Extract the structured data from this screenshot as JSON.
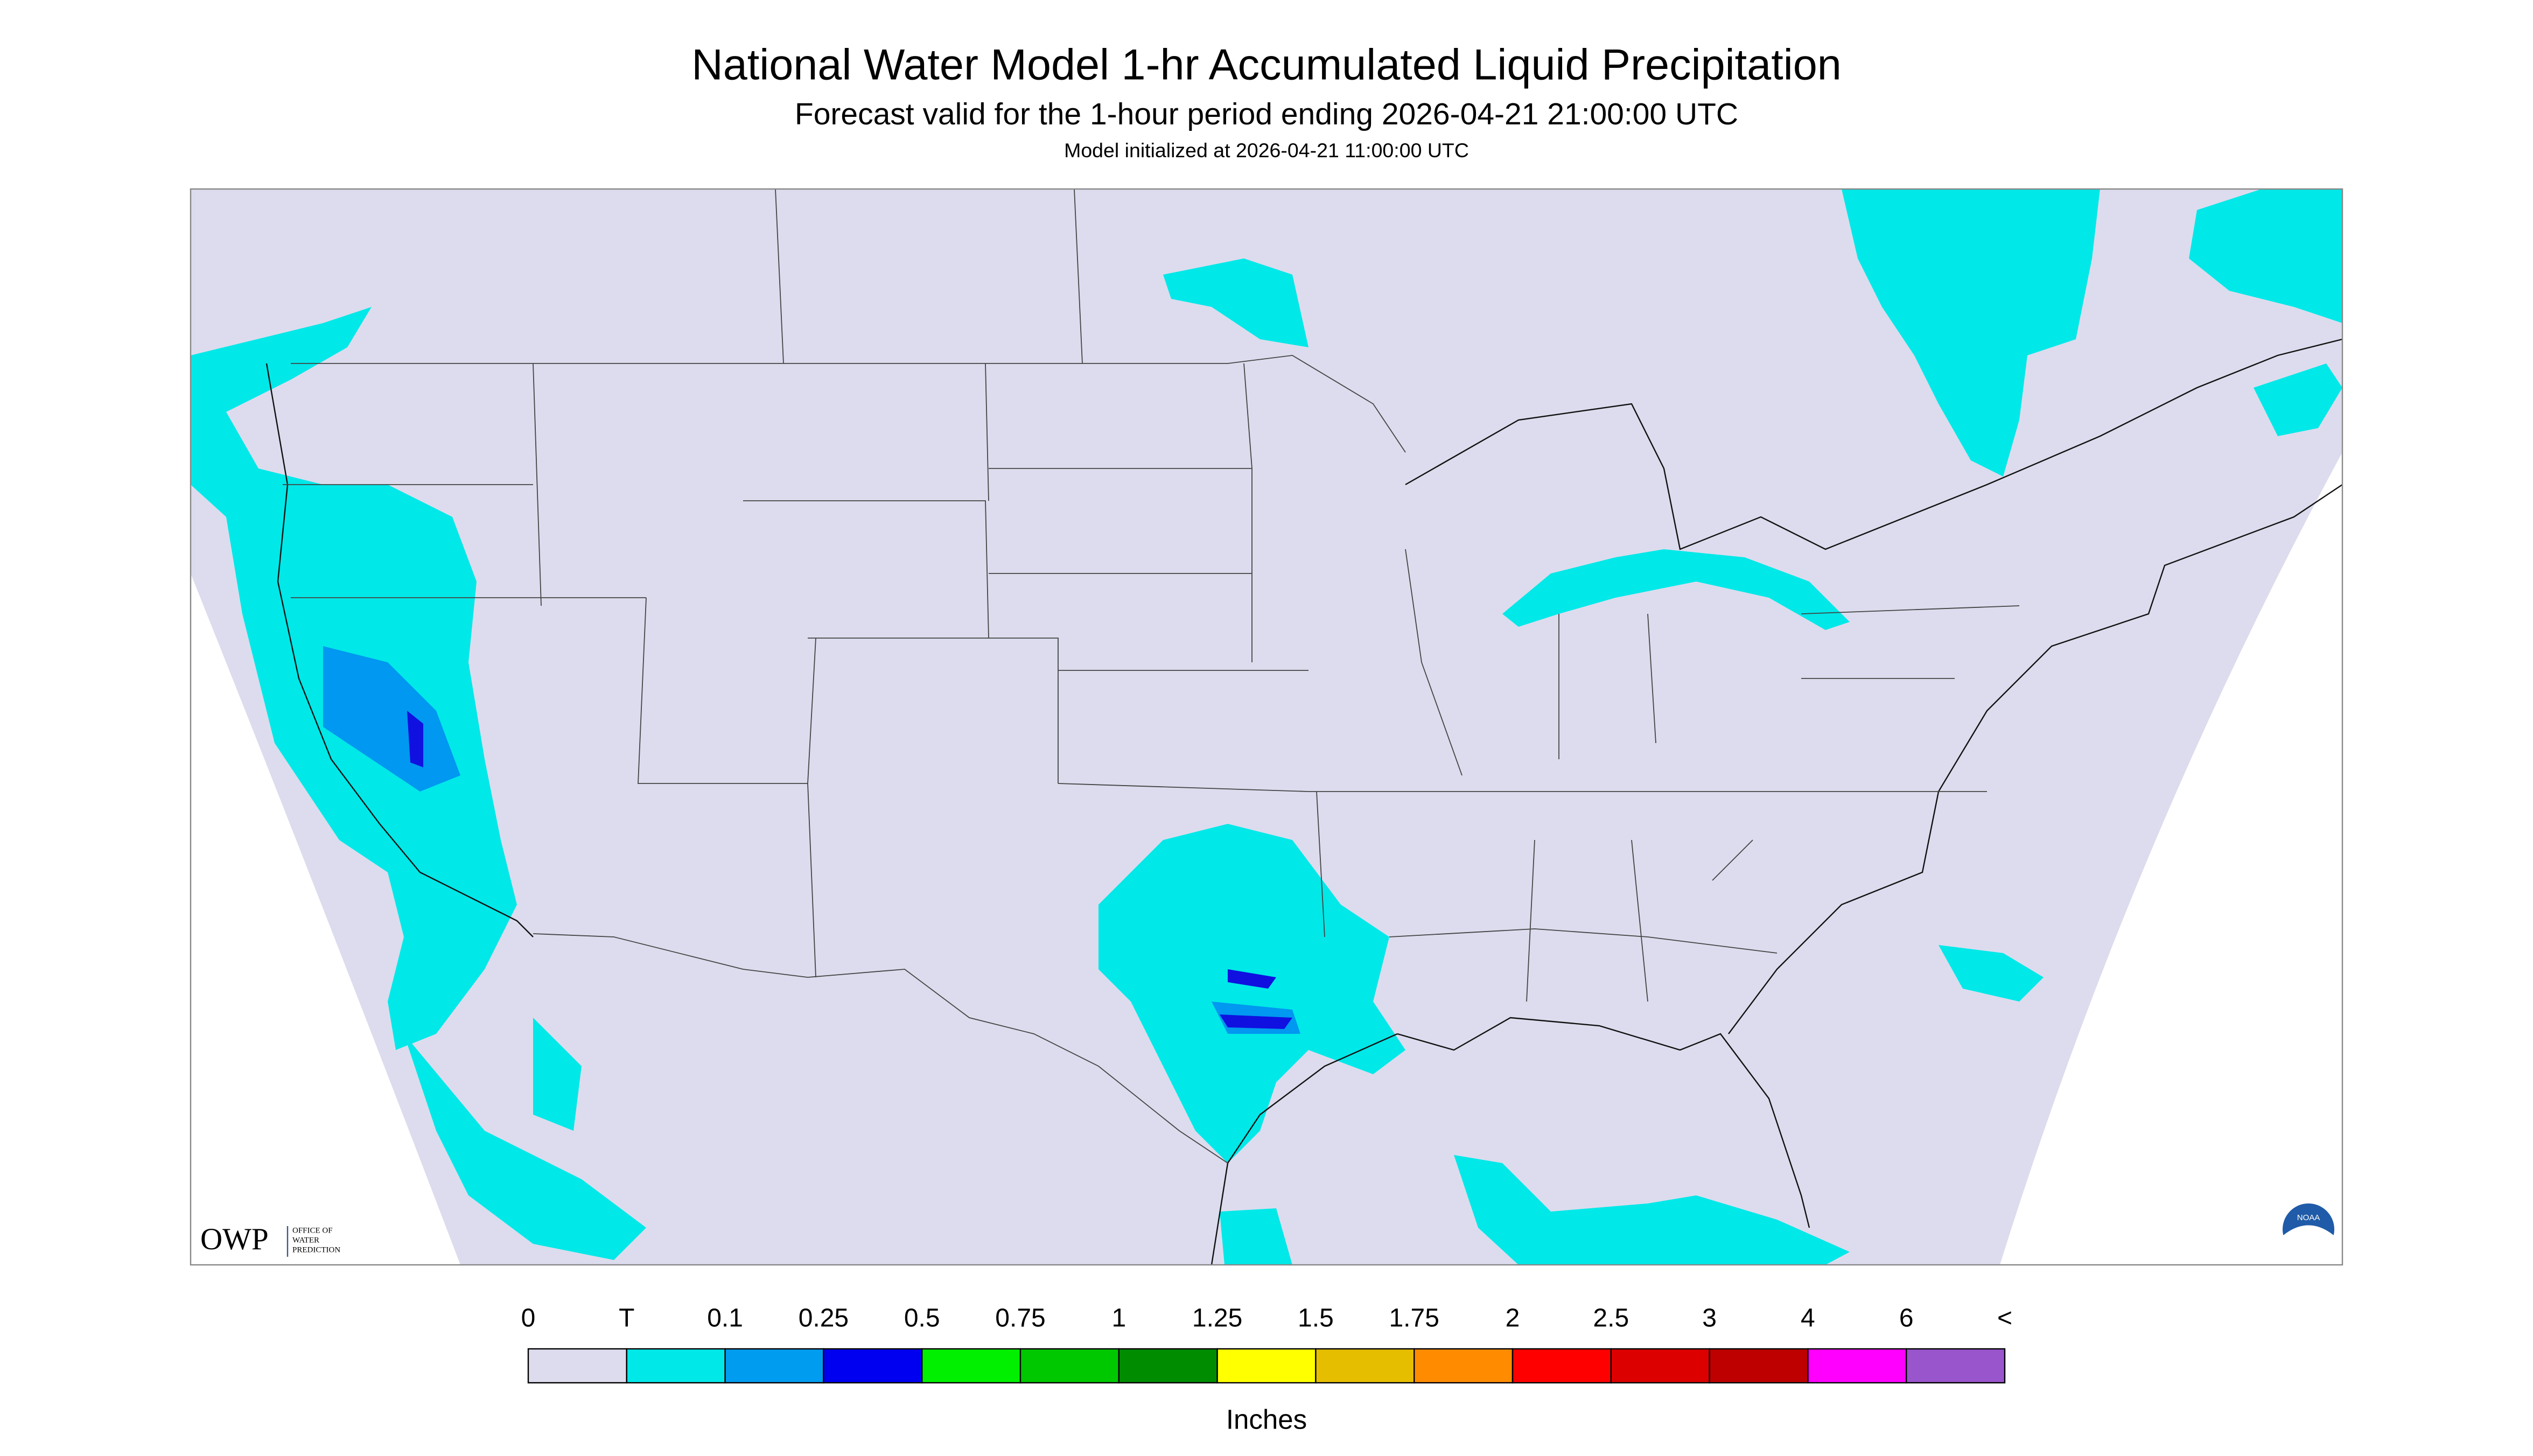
{
  "header": {
    "title": "National Water Model 1-hr Accumulated Liquid Precipitation",
    "subtitle": "Forecast valid for the 1-hour period ending 2026-04-21 21:00:00 UTC",
    "init": "Model initialized at 2026-04-21 11:00:00 UTC"
  },
  "legend": {
    "labels": [
      "0",
      "T",
      "0.1",
      "0.25",
      "0.5",
      "0.75",
      "1",
      "1.25",
      "1.5",
      "1.75",
      "2",
      "2.5",
      "3",
      "4",
      "6",
      "<"
    ],
    "colors": [
      "#dcdcee",
      "#00e8e8",
      "#009cf0",
      "#0000f0",
      "#00f000",
      "#00c800",
      "#008c00",
      "#ffff00",
      "#e6be00",
      "#ff8c00",
      "#ff0000",
      "#dc0000",
      "#be0000",
      "#ff00ff",
      "#9955cc"
    ],
    "units": "Inches"
  },
  "logo": {
    "owp": "OWP",
    "office": [
      "OFFICE OF",
      "WATER",
      "PREDICTION"
    ]
  },
  "noaa": "NOAA"
}
